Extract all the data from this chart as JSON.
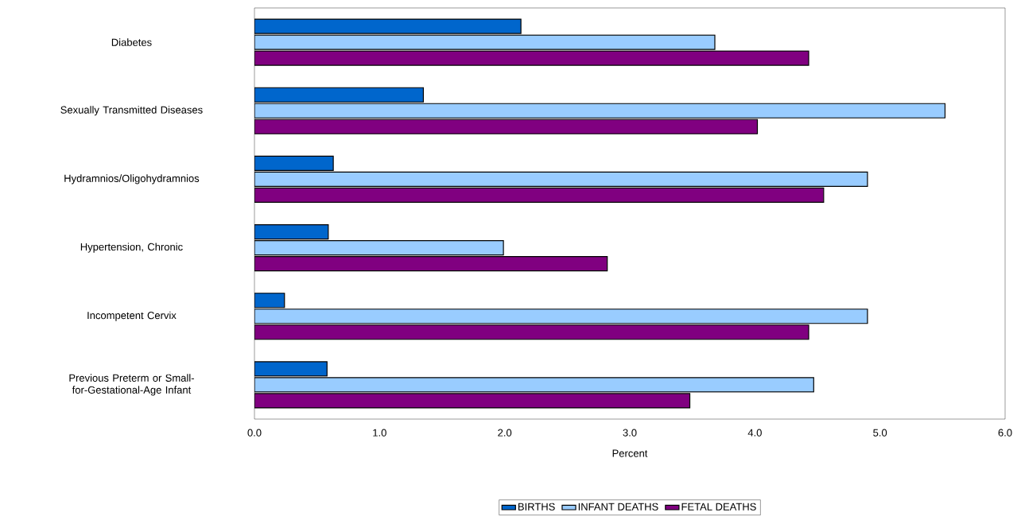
{
  "chart_data": {
    "type": "bar",
    "orientation": "horizontal",
    "xlabel": "Percent",
    "categories": [
      "Diabetes",
      "Sexually Transmitted Diseases",
      "Hydramnios/Oligohydramnios",
      "Hypertension, Chronic",
      "Incompetent Cervix",
      "Previous Preterm or Small-for-Gestational-Age Infant"
    ],
    "series": [
      {
        "name": "BIRTHS",
        "color": "#0066cc",
        "values": [
          2.13,
          1.35,
          0.63,
          0.59,
          0.24,
          0.58
        ]
      },
      {
        "name": "INFANT DEATHS",
        "color": "#99ccff",
        "values": [
          3.68,
          5.52,
          4.9,
          1.99,
          4.9,
          4.47
        ]
      },
      {
        "name": "FETAL DEATHS",
        "color": "#800080",
        "values": [
          4.43,
          4.02,
          4.55,
          2.82,
          4.43,
          3.48
        ]
      }
    ],
    "xlim": [
      0,
      6
    ],
    "xticks": [
      {
        "value": 0,
        "label": "0.0"
      },
      {
        "value": 1,
        "label": "1.0"
      },
      {
        "value": 2,
        "label": "2.0"
      },
      {
        "value": 3,
        "label": "3.0"
      },
      {
        "value": 4,
        "label": "4.0"
      },
      {
        "value": 5,
        "label": "5.0"
      },
      {
        "value": 6,
        "label": "6.0"
      }
    ],
    "grid": false,
    "legend": "bottom"
  }
}
